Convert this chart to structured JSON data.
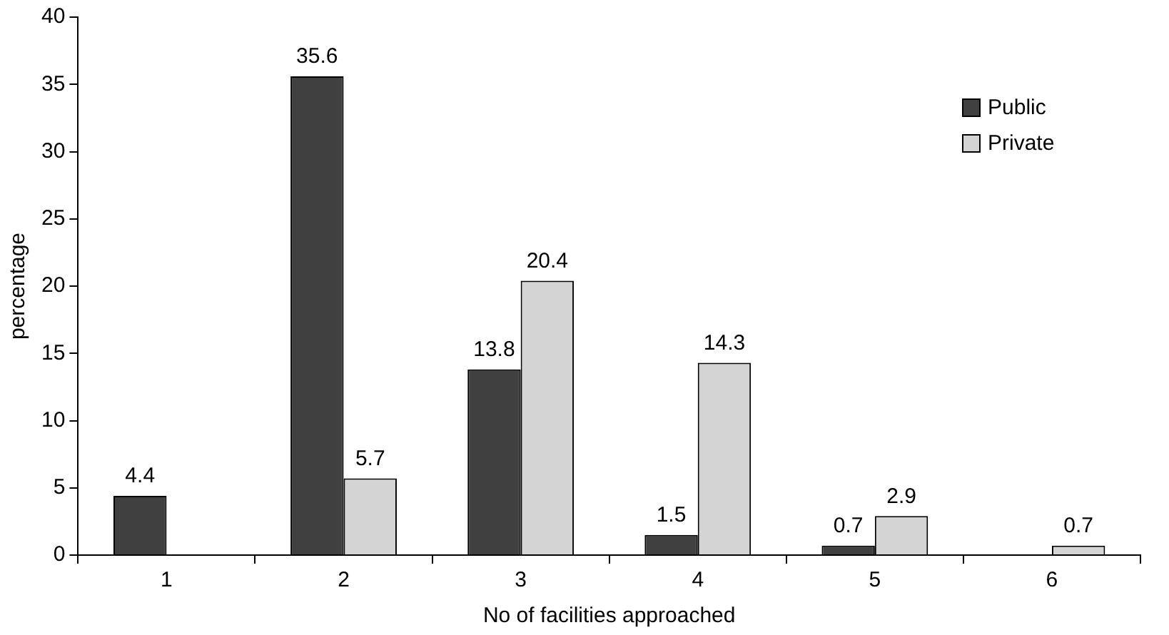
{
  "chart_data": {
    "type": "bar",
    "xlabel": "No of facilities approached",
    "ylabel": "percentage",
    "categories": [
      "1",
      "2",
      "3",
      "4",
      "5",
      "6"
    ],
    "series": [
      {
        "name": "Public",
        "color": "#404040",
        "values": [
          4.4,
          35.6,
          13.8,
          1.5,
          0.7,
          null
        ]
      },
      {
        "name": "Private",
        "color": "#d4d4d4",
        "values": [
          null,
          5.7,
          20.4,
          14.3,
          2.9,
          0.7
        ]
      }
    ],
    "ylim": [
      0,
      40
    ],
    "yticks": [
      0,
      5,
      10,
      15,
      20,
      25,
      30,
      35,
      40
    ],
    "grid": false,
    "legend": "top right",
    "data_labels": true
  }
}
